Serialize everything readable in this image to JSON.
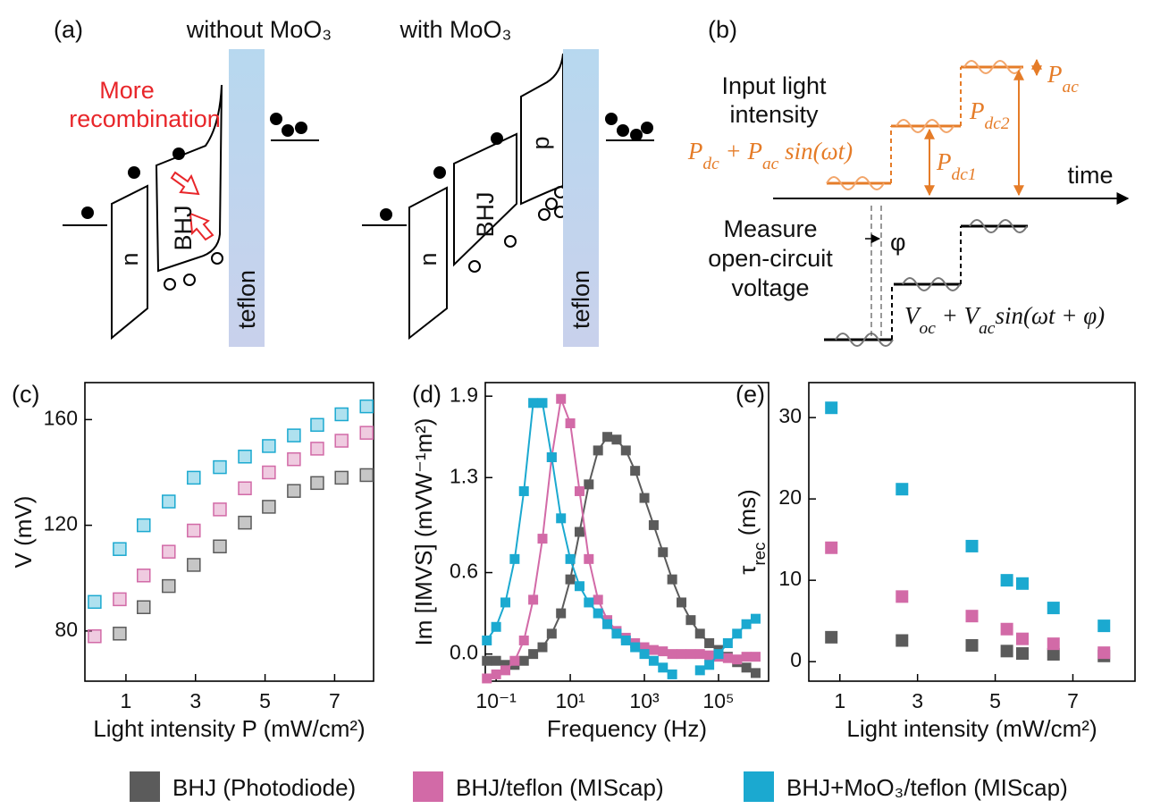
{
  "panel_a": {
    "label": "(a)",
    "left_title": "without MoO₃",
    "right_title": "with MoO₃",
    "annotation": [
      "More",
      "recombination"
    ],
    "n_label": "n",
    "bhj_label": "BHJ",
    "p_label": "p",
    "teflon_label": "teflon"
  },
  "panel_b": {
    "label": "(b)",
    "input_label": [
      "Input light",
      "intensity"
    ],
    "input_formula": [
      {
        "text": "P"
      },
      {
        "sub": "dc"
      },
      {
        "text": " + P"
      },
      {
        "sub": "ac"
      },
      {
        "text": " sin(ωt)"
      }
    ],
    "pdc1": [
      {
        "text": "P"
      },
      {
        "sub": "dc1"
      }
    ],
    "pdc2": [
      {
        "text": "P"
      },
      {
        "sub": "dc2"
      }
    ],
    "pac": [
      {
        "text": "P"
      },
      {
        "sub": "ac"
      }
    ],
    "time_label": "time",
    "measure_label": [
      "Measure",
      "open-circuit",
      "voltage"
    ],
    "phase_label": "φ",
    "output_formula": [
      {
        "text": "V"
      },
      {
        "sub": "oc"
      },
      {
        "text": " + V"
      },
      {
        "sub": "ac"
      },
      {
        "text": "sin(ωt + φ)"
      }
    ]
  },
  "chart_data": [
    {
      "type": "scatter",
      "panel_label": "(c)",
      "x_label": "Light intensity P (mW/cm²)",
      "y_label": "V (mV)",
      "markers": "hollow",
      "x": [
        0.1,
        0.82,
        1.51,
        2.23,
        2.95,
        3.7,
        4.42,
        5.11,
        5.83,
        6.5,
        7.2,
        7.92
      ],
      "xlim": [
        -0.18,
        8.12
      ],
      "xticks": [
        1,
        3,
        5,
        7
      ],
      "ylim": [
        61,
        174
      ],
      "yticks": [
        80,
        120,
        160
      ],
      "legend": "bottom",
      "series": [
        {
          "name": "BHJ (Photodiode)",
          "color": "#5b5b5b",
          "values": [
            null,
            79,
            89,
            97,
            105,
            112,
            121,
            127,
            133,
            136,
            138,
            139
          ]
        },
        {
          "name": "BHJ/teflon (MIScap)",
          "color": "#d26aa7",
          "values": [
            78,
            92,
            101,
            110,
            118,
            126,
            134,
            140,
            145,
            149,
            152,
            155
          ]
        },
        {
          "name": "BHJ+MoO₃/teflon (MIScap)",
          "color": "#1ba9d0",
          "values": [
            91,
            111,
            120,
            129,
            138,
            142,
            146,
            150,
            154,
            158,
            162,
            165
          ]
        }
      ]
    },
    {
      "type": "line",
      "panel_label": "(d)",
      "x_label": "Frequency (Hz)",
      "y_label": "Im [IMVS] (mVW⁻¹m²)",
      "log_x": true,
      "x": [
        0.0562,
        0.1,
        0.178,
        0.316,
        0.562,
        1,
        1.78,
        3.16,
        5.62,
        10,
        17.8,
        31.6,
        56.2,
        100,
        178,
        316,
        562,
        1000,
        1780,
        3160,
        5620,
        10000,
        17800,
        31600,
        56200,
        100000,
        178000,
        316000,
        562000,
        1000000
      ],
      "xlim": [
        0.051,
        2240000
      ],
      "xticks": [
        {
          "value": 0.1,
          "label": "10⁻¹"
        },
        {
          "value": 10,
          "label": "10¹"
        },
        {
          "value": 1000,
          "label": "10³"
        },
        {
          "value": 100000,
          "label": "10⁵"
        }
      ],
      "ylim": [
        -0.2,
        2.0
      ],
      "yticks": [
        {
          "value": 0,
          "label": "0.0"
        },
        0.6,
        1.3,
        1.9
      ],
      "series": [
        {
          "color": "#5b5b5b",
          "values": [
            -0.05,
            -0.05,
            -0.08,
            -0.08,
            -0.05,
            0.0,
            0.05,
            0.15,
            0.3,
            0.55,
            0.9,
            1.25,
            1.5,
            1.6,
            1.58,
            1.5,
            1.35,
            1.15,
            0.95,
            0.75,
            0.55,
            0.38,
            0.25,
            0.15,
            0.08,
            0.03,
            -0.02,
            -0.06,
            -0.1,
            -0.14
          ]
        },
        {
          "color": "#d26aa7",
          "values": [
            -0.18,
            -0.15,
            -0.12,
            -0.05,
            0.1,
            0.4,
            0.85,
            1.45,
            1.88,
            1.7,
            1.2,
            0.7,
            0.4,
            0.25,
            0.17,
            0.12,
            0.08,
            0.05,
            0.03,
            0.02,
            0.0,
            0.0,
            0.0,
            0.0,
            -0.01,
            -0.02,
            -0.03,
            -0.04,
            -0.02,
            -0.02
          ]
        },
        {
          "color": "#1ba9d0",
          "values": [
            0.1,
            0.2,
            0.38,
            0.7,
            1.2,
            1.85,
            1.85,
            1.45,
            1.0,
            0.7,
            0.5,
            0.38,
            0.3,
            0.22,
            0.15,
            0.1,
            0.05,
            0.0,
            -0.05,
            -0.1,
            -0.15,
            null,
            null,
            -0.12,
            -0.08,
            0.0,
            0.08,
            0.15,
            0.22,
            0.26
          ]
        }
      ]
    },
    {
      "type": "scatter",
      "panel_label": "(e)",
      "x_label": "Light intensity (mW/cm²)",
      "y_label": [
        {
          "text": "τ"
        },
        {
          "sub": "rec"
        },
        {
          "text": " (ms)"
        }
      ],
      "x": [
        0.78,
        2.6,
        4.4,
        5.3,
        5.7,
        6.5,
        7.8
      ],
      "xlim": [
        0.2,
        8.6
      ],
      "xticks": [
        1,
        3,
        5,
        7
      ],
      "ylim": [
        -2.4,
        34.3
      ],
      "yticks": [
        0,
        10,
        20,
        30
      ],
      "series": [
        {
          "color": "#5b5b5b",
          "values": [
            3.0,
            2.6,
            2.0,
            1.3,
            1.0,
            0.9,
            0.7
          ]
        },
        {
          "color": "#d26aa7",
          "values": [
            14.0,
            8.0,
            5.6,
            4.0,
            2.8,
            2.2,
            1.1
          ]
        },
        {
          "color": "#1ba9d0",
          "values": [
            31.2,
            21.2,
            14.2,
            10.0,
            9.6,
            6.6,
            4.4
          ]
        }
      ]
    }
  ]
}
